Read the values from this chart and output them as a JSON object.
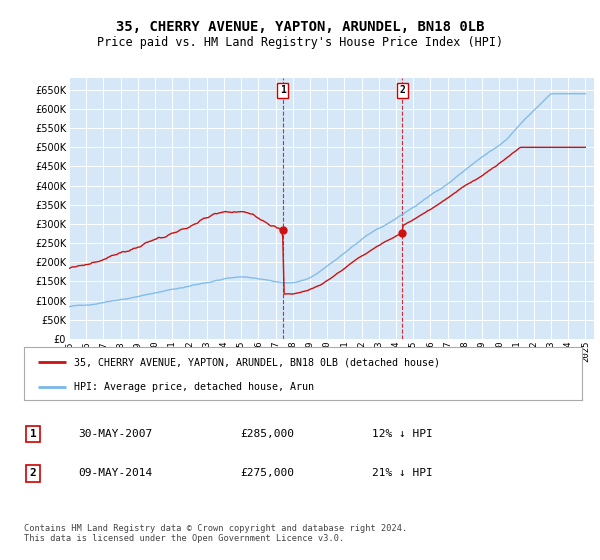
{
  "title": "35, CHERRY AVENUE, YAPTON, ARUNDEL, BN18 0LB",
  "subtitle": "Price paid vs. HM Land Registry's House Price Index (HPI)",
  "ylim": [
    0,
    680000
  ],
  "yticks": [
    0,
    50000,
    100000,
    150000,
    200000,
    250000,
    300000,
    350000,
    400000,
    450000,
    500000,
    550000,
    600000,
    650000
  ],
  "xlim_start": 1995,
  "xlim_end": 2025.5,
  "plot_bg": "#d6e8f7",
  "hpi_color": "#7ab8e8",
  "price_color": "#cc1111",
  "vline_color": "#cc0000",
  "marker1_year": 2007.41,
  "marker1_value": 285000,
  "marker2_year": 2014.36,
  "marker2_value": 275000,
  "legend_label1": "35, CHERRY AVENUE, YAPTON, ARUNDEL, BN18 0LB (detached house)",
  "legend_label2": "HPI: Average price, detached house, Arun",
  "annotation1_label": "1",
  "annotation1_date": "30-MAY-2007",
  "annotation1_price": "£285,000",
  "annotation1_hpi": "12% ↓ HPI",
  "annotation2_label": "2",
  "annotation2_date": "09-MAY-2014",
  "annotation2_price": "£275,000",
  "annotation2_hpi": "21% ↓ HPI",
  "footer": "Contains HM Land Registry data © Crown copyright and database right 2024.\nThis data is licensed under the Open Government Licence v3.0.",
  "grid_color": "#ffffff",
  "box_edge_color": "#cc0000",
  "legend_edge_color": "#aaaaaa"
}
